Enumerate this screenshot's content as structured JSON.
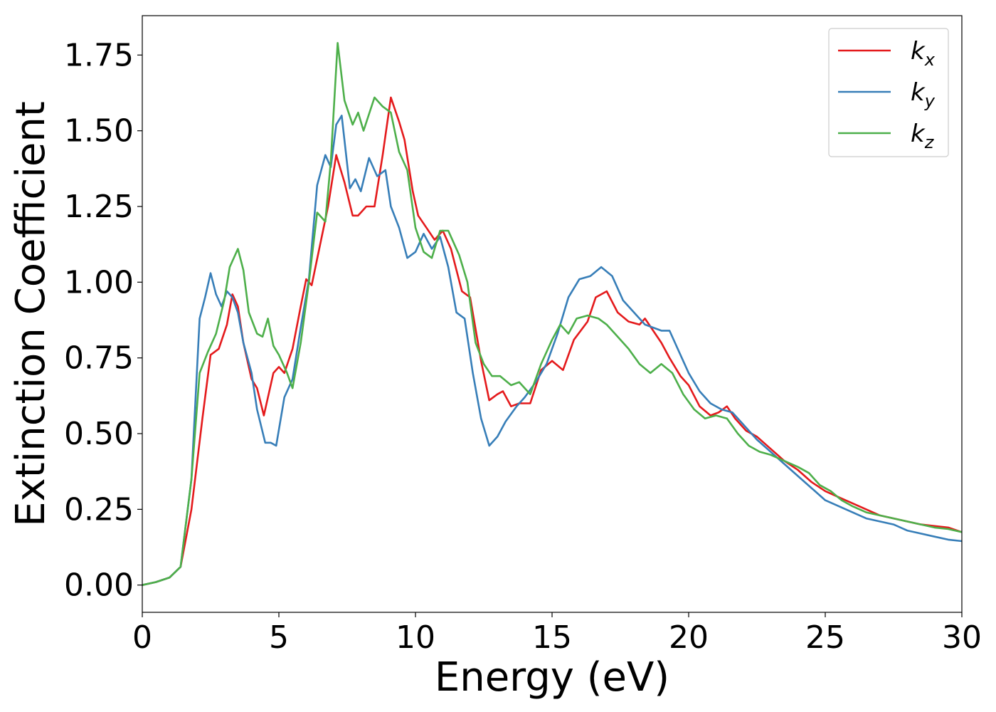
{
  "chart_data": {
    "type": "line",
    "title": "",
    "xlabel": "Energy (eV)",
    "ylabel": "Extinction Coefficient",
    "xlim": [
      0,
      30
    ],
    "ylim": [
      -0.09,
      1.88
    ],
    "x_ticks": [
      0,
      5,
      10,
      15,
      20,
      25,
      30
    ],
    "x_tick_labels": [
      "0",
      "5",
      "10",
      "15",
      "20",
      "25",
      "30"
    ],
    "y_ticks": [
      0,
      0.25,
      0.5,
      0.75,
      1.0,
      1.25,
      1.5,
      1.75
    ],
    "y_tick_labels": [
      "0.00",
      "0.25",
      "0.50",
      "0.75",
      "1.00",
      "1.25",
      "1.50",
      "1.75"
    ],
    "grid": false,
    "legend_position": "top-right",
    "series": [
      {
        "name": "k",
        "subscript": "x",
        "color": "#e41a1c",
        "points": [
          [
            0,
            0
          ],
          [
            0.5,
            0.01
          ],
          [
            1.0,
            0.025
          ],
          [
            1.4,
            0.06
          ],
          [
            1.8,
            0.25
          ],
          [
            2.2,
            0.55
          ],
          [
            2.5,
            0.76
          ],
          [
            2.8,
            0.78
          ],
          [
            3.1,
            0.86
          ],
          [
            3.3,
            0.96
          ],
          [
            3.5,
            0.92
          ],
          [
            3.7,
            0.8
          ],
          [
            4.0,
            0.68
          ],
          [
            4.2,
            0.65
          ],
          [
            4.45,
            0.56
          ],
          [
            4.8,
            0.7
          ],
          [
            5.0,
            0.72
          ],
          [
            5.2,
            0.7
          ],
          [
            5.5,
            0.78
          ],
          [
            5.8,
            0.92
          ],
          [
            6.0,
            1.01
          ],
          [
            6.2,
            0.99
          ],
          [
            6.5,
            1.12
          ],
          [
            6.8,
            1.25
          ],
          [
            7.1,
            1.42
          ],
          [
            7.4,
            1.33
          ],
          [
            7.7,
            1.22
          ],
          [
            7.9,
            1.22
          ],
          [
            8.2,
            1.25
          ],
          [
            8.5,
            1.25
          ],
          [
            8.8,
            1.42
          ],
          [
            9.1,
            1.61
          ],
          [
            9.4,
            1.53
          ],
          [
            9.6,
            1.47
          ],
          [
            9.9,
            1.3
          ],
          [
            10.1,
            1.22
          ],
          [
            10.4,
            1.18
          ],
          [
            10.7,
            1.14
          ],
          [
            11.0,
            1.17
          ],
          [
            11.3,
            1.11
          ],
          [
            11.7,
            0.97
          ],
          [
            12.0,
            0.95
          ],
          [
            12.4,
            0.74
          ],
          [
            12.7,
            0.61
          ],
          [
            13.0,
            0.63
          ],
          [
            13.2,
            0.64
          ],
          [
            13.5,
            0.59
          ],
          [
            13.8,
            0.6
          ],
          [
            14.2,
            0.6
          ],
          [
            14.6,
            0.71
          ],
          [
            15.0,
            0.74
          ],
          [
            15.4,
            0.71
          ],
          [
            15.8,
            0.81
          ],
          [
            16.3,
            0.87
          ],
          [
            16.6,
            0.95
          ],
          [
            17.0,
            0.97
          ],
          [
            17.4,
            0.9
          ],
          [
            17.8,
            0.87
          ],
          [
            18.2,
            0.86
          ],
          [
            18.4,
            0.88
          ],
          [
            18.7,
            0.84
          ],
          [
            19.0,
            0.8
          ],
          [
            19.3,
            0.75
          ],
          [
            19.7,
            0.69
          ],
          [
            20.0,
            0.66
          ],
          [
            20.4,
            0.59
          ],
          [
            20.8,
            0.56
          ],
          [
            21.1,
            0.57
          ],
          [
            21.4,
            0.59
          ],
          [
            21.7,
            0.55
          ],
          [
            22.1,
            0.51
          ],
          [
            22.5,
            0.49
          ],
          [
            23.0,
            0.45
          ],
          [
            23.5,
            0.41
          ],
          [
            24.0,
            0.38
          ],
          [
            24.5,
            0.34
          ],
          [
            25.0,
            0.31
          ],
          [
            25.5,
            0.29
          ],
          [
            26.0,
            0.27
          ],
          [
            26.5,
            0.25
          ],
          [
            27.0,
            0.23
          ],
          [
            27.5,
            0.22
          ],
          [
            28.0,
            0.21
          ],
          [
            28.5,
            0.2
          ],
          [
            29.0,
            0.195
          ],
          [
            29.5,
            0.19
          ],
          [
            30.0,
            0.175
          ]
        ]
      },
      {
        "name": "k",
        "subscript": "y",
        "color": "#377eb8",
        "points": [
          [
            0,
            0
          ],
          [
            0.5,
            0.01
          ],
          [
            1.0,
            0.025
          ],
          [
            1.4,
            0.06
          ],
          [
            1.8,
            0.35
          ],
          [
            2.1,
            0.88
          ],
          [
            2.3,
            0.95
          ],
          [
            2.5,
            1.03
          ],
          [
            2.7,
            0.96
          ],
          [
            2.9,
            0.92
          ],
          [
            3.1,
            0.97
          ],
          [
            3.3,
            0.95
          ],
          [
            3.5,
            0.9
          ],
          [
            3.7,
            0.8
          ],
          [
            4.0,
            0.7
          ],
          [
            4.2,
            0.58
          ],
          [
            4.5,
            0.47
          ],
          [
            4.7,
            0.47
          ],
          [
            4.9,
            0.46
          ],
          [
            5.2,
            0.62
          ],
          [
            5.5,
            0.68
          ],
          [
            5.8,
            0.85
          ],
          [
            6.1,
            1.01
          ],
          [
            6.4,
            1.32
          ],
          [
            6.7,
            1.42
          ],
          [
            6.9,
            1.38
          ],
          [
            7.1,
            1.52
          ],
          [
            7.3,
            1.55
          ],
          [
            7.6,
            1.31
          ],
          [
            7.8,
            1.34
          ],
          [
            8.0,
            1.3
          ],
          [
            8.3,
            1.41
          ],
          [
            8.6,
            1.35
          ],
          [
            8.9,
            1.37
          ],
          [
            9.1,
            1.25
          ],
          [
            9.4,
            1.18
          ],
          [
            9.7,
            1.08
          ],
          [
            10.0,
            1.1
          ],
          [
            10.3,
            1.16
          ],
          [
            10.6,
            1.11
          ],
          [
            10.9,
            1.15
          ],
          [
            11.2,
            1.05
          ],
          [
            11.5,
            0.9
          ],
          [
            11.8,
            0.88
          ],
          [
            12.1,
            0.7
          ],
          [
            12.4,
            0.55
          ],
          [
            12.7,
            0.46
          ],
          [
            13.0,
            0.49
          ],
          [
            13.3,
            0.54
          ],
          [
            13.7,
            0.59
          ],
          [
            14.0,
            0.62
          ],
          [
            14.4,
            0.67
          ],
          [
            14.8,
            0.73
          ],
          [
            15.2,
            0.83
          ],
          [
            15.6,
            0.95
          ],
          [
            16.0,
            1.01
          ],
          [
            16.4,
            1.02
          ],
          [
            16.8,
            1.05
          ],
          [
            17.2,
            1.02
          ],
          [
            17.6,
            0.94
          ],
          [
            18.0,
            0.9
          ],
          [
            18.4,
            0.86
          ],
          [
            18.7,
            0.85
          ],
          [
            19.0,
            0.84
          ],
          [
            19.3,
            0.84
          ],
          [
            19.6,
            0.78
          ],
          [
            20.0,
            0.7
          ],
          [
            20.4,
            0.64
          ],
          [
            20.8,
            0.6
          ],
          [
            21.2,
            0.58
          ],
          [
            21.6,
            0.57
          ],
          [
            22.0,
            0.53
          ],
          [
            22.5,
            0.48
          ],
          [
            23.0,
            0.44
          ],
          [
            23.5,
            0.4
          ],
          [
            24.0,
            0.36
          ],
          [
            24.5,
            0.32
          ],
          [
            25.0,
            0.28
          ],
          [
            25.5,
            0.26
          ],
          [
            26.0,
            0.24
          ],
          [
            26.5,
            0.22
          ],
          [
            27.0,
            0.21
          ],
          [
            27.5,
            0.2
          ],
          [
            28.0,
            0.18
          ],
          [
            28.5,
            0.17
          ],
          [
            29.0,
            0.16
          ],
          [
            29.5,
            0.15
          ],
          [
            30.0,
            0.145
          ]
        ]
      },
      {
        "name": "k",
        "subscript": "z",
        "color": "#4daf4a",
        "points": [
          [
            0,
            0
          ],
          [
            0.5,
            0.01
          ],
          [
            1.0,
            0.025
          ],
          [
            1.4,
            0.06
          ],
          [
            1.8,
            0.35
          ],
          [
            2.1,
            0.7
          ],
          [
            2.4,
            0.77
          ],
          [
            2.7,
            0.83
          ],
          [
            3.0,
            0.94
          ],
          [
            3.2,
            1.05
          ],
          [
            3.5,
            1.11
          ],
          [
            3.7,
            1.04
          ],
          [
            3.9,
            0.9
          ],
          [
            4.2,
            0.83
          ],
          [
            4.4,
            0.82
          ],
          [
            4.6,
            0.88
          ],
          [
            4.8,
            0.79
          ],
          [
            5.0,
            0.76
          ],
          [
            5.3,
            0.7
          ],
          [
            5.5,
            0.65
          ],
          [
            5.8,
            0.8
          ],
          [
            6.1,
            1.0
          ],
          [
            6.4,
            1.23
          ],
          [
            6.7,
            1.2
          ],
          [
            6.9,
            1.4
          ],
          [
            7.15,
            1.79
          ],
          [
            7.4,
            1.6
          ],
          [
            7.7,
            1.52
          ],
          [
            7.9,
            1.56
          ],
          [
            8.1,
            1.5
          ],
          [
            8.5,
            1.61
          ],
          [
            8.8,
            1.58
          ],
          [
            9.1,
            1.56
          ],
          [
            9.4,
            1.43
          ],
          [
            9.7,
            1.37
          ],
          [
            10.0,
            1.18
          ],
          [
            10.3,
            1.1
          ],
          [
            10.6,
            1.08
          ],
          [
            10.9,
            1.17
          ],
          [
            11.2,
            1.17
          ],
          [
            11.6,
            1.09
          ],
          [
            11.9,
            1.0
          ],
          [
            12.2,
            0.8
          ],
          [
            12.5,
            0.73
          ],
          [
            12.8,
            0.69
          ],
          [
            13.1,
            0.69
          ],
          [
            13.5,
            0.66
          ],
          [
            13.8,
            0.67
          ],
          [
            14.2,
            0.63
          ],
          [
            14.6,
            0.73
          ],
          [
            15.0,
            0.81
          ],
          [
            15.3,
            0.86
          ],
          [
            15.6,
            0.83
          ],
          [
            15.9,
            0.88
          ],
          [
            16.3,
            0.89
          ],
          [
            16.7,
            0.88
          ],
          [
            17.0,
            0.86
          ],
          [
            17.4,
            0.82
          ],
          [
            17.8,
            0.78
          ],
          [
            18.2,
            0.73
          ],
          [
            18.6,
            0.7
          ],
          [
            19.0,
            0.73
          ],
          [
            19.4,
            0.7
          ],
          [
            19.8,
            0.63
          ],
          [
            20.2,
            0.58
          ],
          [
            20.6,
            0.55
          ],
          [
            21.0,
            0.56
          ],
          [
            21.4,
            0.55
          ],
          [
            21.8,
            0.5
          ],
          [
            22.2,
            0.46
          ],
          [
            22.6,
            0.44
          ],
          [
            23.0,
            0.43
          ],
          [
            23.5,
            0.41
          ],
          [
            24.0,
            0.39
          ],
          [
            24.4,
            0.37
          ],
          [
            24.8,
            0.33
          ],
          [
            25.2,
            0.31
          ],
          [
            25.6,
            0.28
          ],
          [
            26.0,
            0.26
          ],
          [
            26.5,
            0.24
          ],
          [
            27.0,
            0.23
          ],
          [
            27.5,
            0.22
          ],
          [
            28.0,
            0.21
          ],
          [
            28.5,
            0.2
          ],
          [
            29.0,
            0.19
          ],
          [
            29.5,
            0.185
          ],
          [
            30.0,
            0.175
          ]
        ]
      }
    ]
  }
}
